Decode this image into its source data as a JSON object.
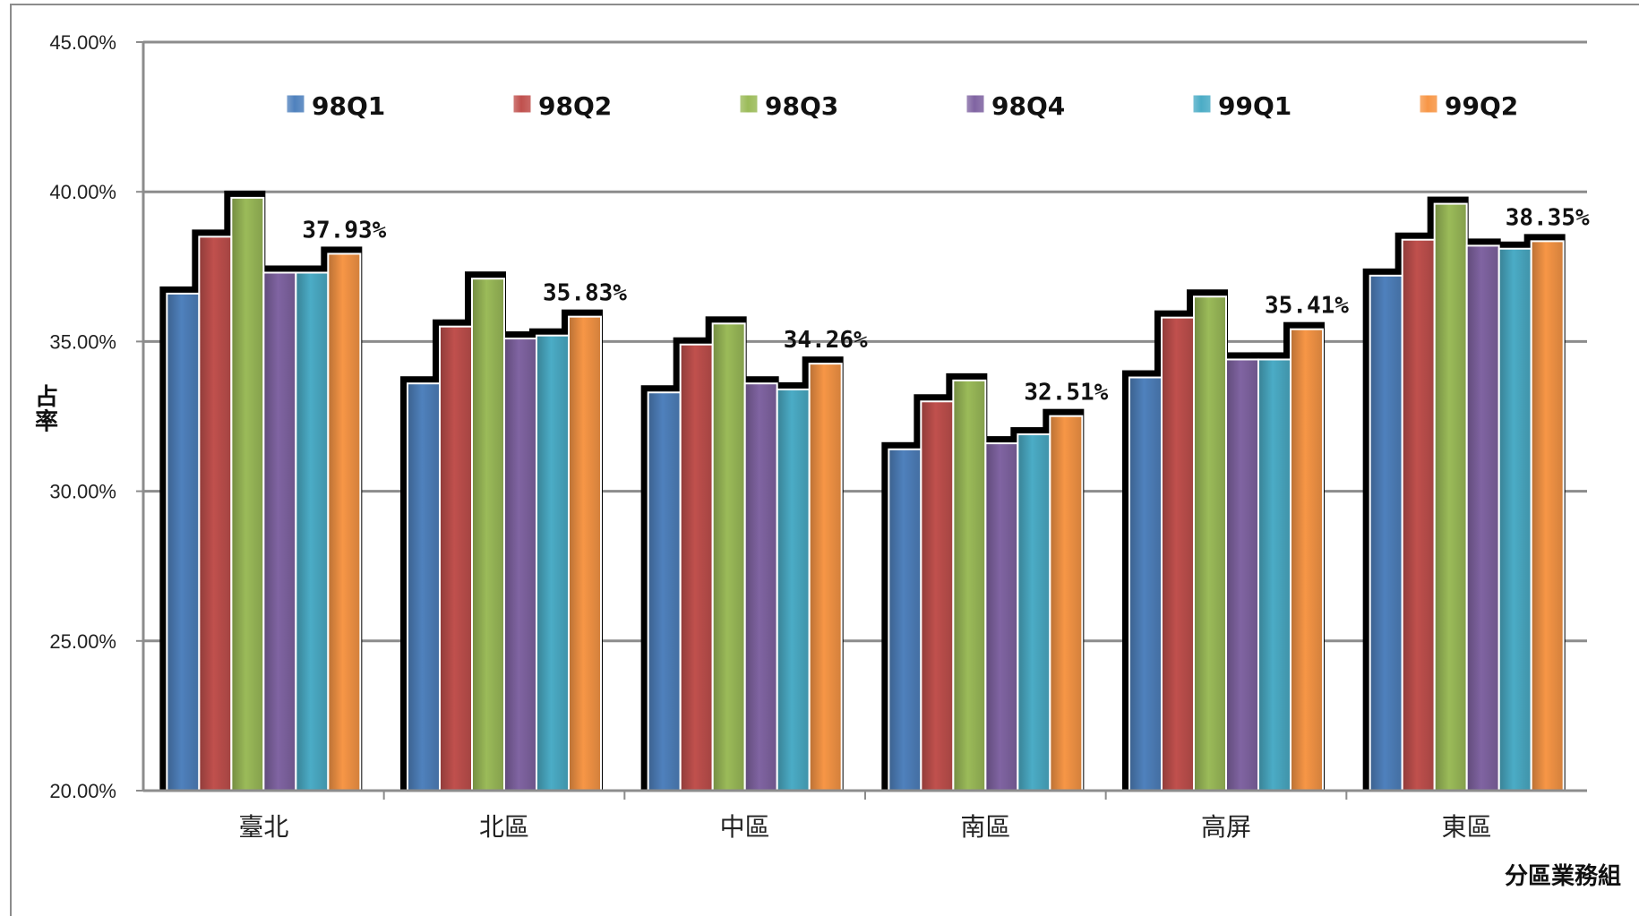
{
  "chart_data": {
    "type": "bar",
    "title": "",
    "xlabel": "分區業務組",
    "ylabel": "占率",
    "ylim": [
      20,
      45
    ],
    "y_ticks": [
      "20.00%",
      "25.00%",
      "30.00%",
      "35.00%",
      "40.00%",
      "45.00%"
    ],
    "grid": true,
    "legend_position": "top",
    "categories": [
      "臺北",
      "北區",
      "中區",
      "南區",
      "高屏",
      "東區"
    ],
    "series": [
      {
        "name": "98Q1",
        "color": "#4f81bd",
        "values": [
          36.6,
          33.6,
          33.3,
          31.4,
          33.8,
          37.2
        ]
      },
      {
        "name": "98Q2",
        "color": "#c0504d",
        "values": [
          38.5,
          35.5,
          34.9,
          33.0,
          35.8,
          38.4
        ]
      },
      {
        "name": "98Q3",
        "color": "#9bbb59",
        "values": [
          39.8,
          37.1,
          35.6,
          33.7,
          36.5,
          39.6
        ]
      },
      {
        "name": "98Q4",
        "color": "#8064a2",
        "values": [
          37.3,
          35.1,
          33.6,
          31.6,
          34.4,
          38.2
        ]
      },
      {
        "name": "99Q1",
        "color": "#4bacc6",
        "values": [
          37.3,
          35.2,
          33.4,
          31.9,
          34.4,
          38.1
        ]
      },
      {
        "name": "99Q2",
        "color": "#f79646",
        "values": [
          37.93,
          35.83,
          34.26,
          32.51,
          35.41,
          38.35
        ]
      }
    ],
    "data_labels": [
      "37.93%",
      "35.83%",
      "34.26%",
      "32.51%",
      "35.41%",
      "38.35%"
    ]
  }
}
